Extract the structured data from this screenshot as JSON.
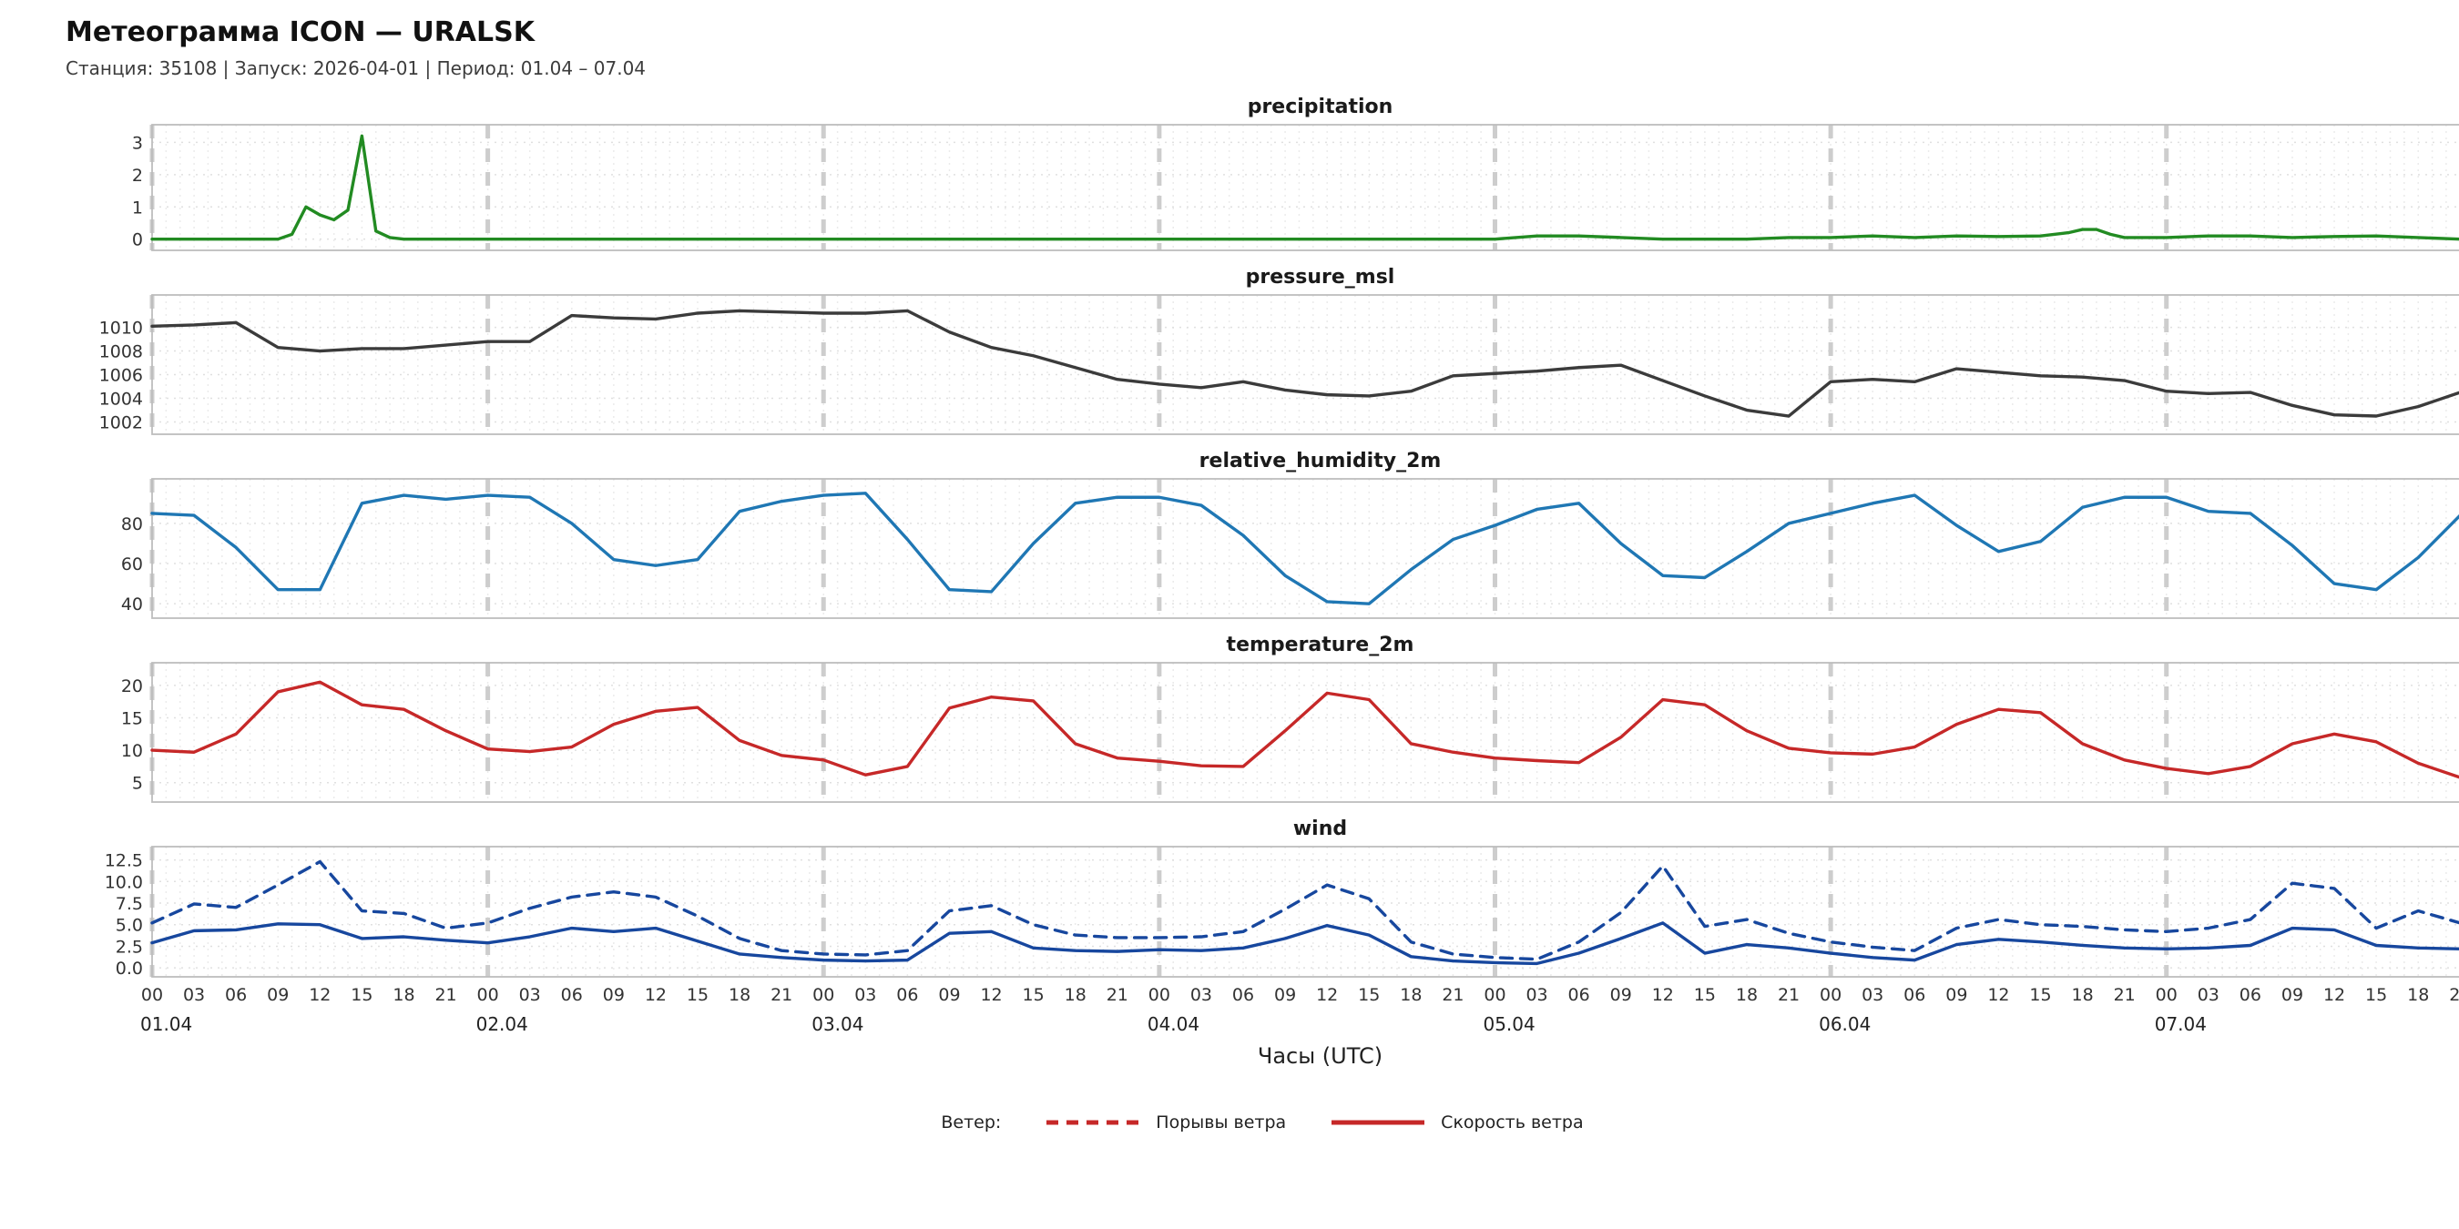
{
  "header": {
    "title": "Метеограмма ICON — URALSK",
    "subtitle": "Станция: 35108 | Запуск: 2026-04-01 | Период: 01.04 – 07.04"
  },
  "xaxis": {
    "label": "Часы (UTC)",
    "x_max": 167,
    "hours_per_day": 24,
    "hour_tick_step": 3,
    "hour_labels": [
      "00",
      "03",
      "06",
      "09",
      "12",
      "15",
      "18",
      "21"
    ],
    "day_labels": [
      "01.04",
      "02.04",
      "03.04",
      "04.04",
      "05.04",
      "06.04",
      "07.04"
    ]
  },
  "legend": {
    "prefix": "Ветер:",
    "items": [
      {
        "label": "Порывы ветра",
        "style": "dashed",
        "color": "#c62828"
      },
      {
        "label": "Скорость ветра",
        "style": "solid",
        "color": "#c62828"
      }
    ]
  },
  "grid": {
    "minor_color": "#ebebeb",
    "tick_grid_color": "#e0e0e0",
    "day_line_color": "#cdcdcd",
    "border_color": "#bdbdbd"
  },
  "chart_data": [
    {
      "type": "line",
      "title": "precipitation",
      "ylim": [
        -0.15,
        3.35
      ],
      "ytick_values": [
        0,
        1,
        2,
        3
      ],
      "ytick_labels": [
        "0",
        "1",
        "2",
        "3"
      ],
      "series": [
        {
          "name": "precipitation",
          "color": "#228B22",
          "dash": false,
          "x": [
            0,
            9,
            10,
            11,
            12,
            13,
            14,
            15,
            16,
            17,
            18,
            24,
            48,
            72,
            96,
            99,
            102,
            105,
            108,
            114,
            117,
            120,
            123,
            126,
            129,
            132,
            135,
            137,
            138,
            139,
            140,
            141,
            144,
            147,
            150,
            153,
            156,
            159,
            162,
            165,
            167
          ],
          "values": [
            0,
            0,
            0.15,
            1.0,
            0.75,
            0.6,
            0.9,
            3.2,
            0.25,
            0.05,
            0,
            0,
            0,
            0,
            0,
            0.1,
            0.1,
            0.05,
            0,
            0,
            0.05,
            0.05,
            0.1,
            0.05,
            0.1,
            0.08,
            0.1,
            0.2,
            0.3,
            0.3,
            0.15,
            0.05,
            0.05,
            0.1,
            0.1,
            0.05,
            0.08,
            0.1,
            0.05,
            0,
            0
          ]
        }
      ]
    },
    {
      "type": "line",
      "title": "pressure_msl",
      "ylim": [
        1001.5,
        1012.2
      ],
      "ytick_values": [
        1002,
        1004,
        1006,
        1008,
        1010
      ],
      "ytick_labels": [
        "1002",
        "1004",
        "1006",
        "1008",
        "1010"
      ],
      "series": [
        {
          "name": "pressure_msl",
          "color": "#3b3b3b",
          "dash": false,
          "x": [
            0,
            3,
            6,
            9,
            12,
            15,
            18,
            21,
            24,
            27,
            30,
            33,
            36,
            39,
            42,
            45,
            48,
            51,
            54,
            57,
            60,
            63,
            66,
            69,
            72,
            75,
            78,
            81,
            84,
            87,
            90,
            93,
            96,
            99,
            102,
            105,
            108,
            111,
            114,
            117,
            120,
            123,
            126,
            129,
            132,
            135,
            138,
            141,
            144,
            147,
            150,
            153,
            156,
            159,
            162,
            165,
            167
          ],
          "values": [
            1010.1,
            1010.2,
            1010.4,
            1008.3,
            1008,
            1008.2,
            1008.2,
            1008.5,
            1008.8,
            1008.8,
            1011,
            1010.8,
            1010.7,
            1011.2,
            1011.4,
            1011.3,
            1011.2,
            1011.2,
            1011.4,
            1009.6,
            1008.3,
            1007.6,
            1006.6,
            1005.6,
            1005.2,
            1004.9,
            1005.4,
            1004.7,
            1004.3,
            1004.2,
            1004.6,
            1005.9,
            1006.1,
            1006.3,
            1006.6,
            1006.8,
            1005.5,
            1004.2,
            1003,
            1002.5,
            1005.4,
            1005.6,
            1005.4,
            1006.5,
            1006.2,
            1005.9,
            1005.8,
            1005.5,
            1004.6,
            1004.4,
            1004.5,
            1003.4,
            1002.6,
            1002.5,
            1003.3,
            1004.5,
            1005.4
          ]
        }
      ]
    },
    {
      "type": "line",
      "title": "relative_humidity_2m",
      "ylim": [
        36,
        99
      ],
      "ytick_values": [
        40,
        60,
        80
      ],
      "ytick_labels": [
        "40",
        "60",
        "80"
      ],
      "series": [
        {
          "name": "relative_humidity_2m",
          "color": "#1f77b4",
          "dash": false,
          "x": [
            0,
            3,
            6,
            9,
            12,
            15,
            18,
            21,
            24,
            27,
            30,
            33,
            36,
            39,
            42,
            45,
            48,
            51,
            54,
            57,
            60,
            63,
            66,
            69,
            72,
            75,
            78,
            81,
            84,
            87,
            90,
            93,
            96,
            99,
            102,
            105,
            108,
            111,
            114,
            117,
            120,
            123,
            126,
            129,
            132,
            135,
            138,
            141,
            144,
            147,
            150,
            153,
            156,
            159,
            162,
            165,
            167
          ],
          "values": [
            85,
            84,
            68,
            47,
            47,
            90,
            94,
            92,
            94,
            93,
            80,
            62,
            59,
            62,
            86,
            91,
            94,
            95,
            72,
            47,
            46,
            70,
            90,
            93,
            93,
            89,
            74,
            54,
            41,
            40,
            57,
            72,
            79,
            87,
            90,
            70,
            54,
            53,
            66,
            80,
            85,
            90,
            94,
            79,
            66,
            71,
            88,
            93,
            93,
            86,
            85,
            69,
            50,
            47,
            63,
            84,
            87
          ]
        }
      ]
    },
    {
      "type": "line",
      "title": "temperature_2m",
      "ylim": [
        3,
        22.5
      ],
      "ytick_values": [
        5,
        10,
        15,
        20
      ],
      "ytick_labels": [
        "5",
        "10",
        "15",
        "20"
      ],
      "series": [
        {
          "name": "temperature_2m",
          "color": "#c62828",
          "dash": false,
          "x": [
            0,
            3,
            6,
            9,
            12,
            15,
            18,
            21,
            24,
            27,
            30,
            33,
            36,
            39,
            42,
            45,
            48,
            51,
            54,
            57,
            60,
            63,
            66,
            69,
            72,
            75,
            78,
            81,
            84,
            87,
            90,
            93,
            96,
            99,
            102,
            105,
            108,
            111,
            114,
            117,
            120,
            123,
            126,
            129,
            132,
            135,
            138,
            141,
            144,
            147,
            150,
            153,
            156,
            159,
            162,
            165,
            167
          ],
          "values": [
            10,
            9.7,
            12.5,
            19,
            20.5,
            17,
            16.3,
            13,
            10.2,
            9.8,
            10.5,
            14,
            16,
            16.6,
            11.5,
            9.2,
            8.5,
            6.2,
            7.5,
            16.5,
            18.2,
            17.6,
            11,
            8.8,
            8.3,
            7.6,
            7.5,
            13,
            18.8,
            17.8,
            11,
            9.7,
            8.8,
            8.4,
            8.1,
            12,
            17.8,
            17,
            13,
            10.3,
            9.6,
            9.4,
            10.5,
            14,
            16.3,
            15.8,
            11,
            8.5,
            7.2,
            6.4,
            7.5,
            11,
            12.5,
            11.3,
            8,
            5.8,
            4.2
          ]
        }
      ]
    },
    {
      "type": "line",
      "title": "wind",
      "ylim": [
        -0.3,
        13.3
      ],
      "ytick_values": [
        0,
        2.5,
        5,
        7.5,
        10,
        12.5
      ],
      "ytick_labels": [
        "0.0",
        "2.5",
        "5.0",
        "7.5",
        "10.0",
        "12.5"
      ],
      "series": [
        {
          "name": "Порывы ветра",
          "color": "#17479e",
          "dash": true,
          "x": [
            0,
            3,
            6,
            9,
            12,
            15,
            18,
            21,
            24,
            27,
            30,
            33,
            36,
            39,
            42,
            45,
            48,
            51,
            54,
            57,
            60,
            63,
            66,
            69,
            72,
            75,
            78,
            81,
            84,
            87,
            90,
            93,
            96,
            99,
            102,
            105,
            108,
            111,
            114,
            117,
            120,
            123,
            126,
            129,
            132,
            135,
            138,
            141,
            144,
            147,
            150,
            153,
            156,
            159,
            162,
            165,
            167
          ],
          "values": [
            5.2,
            7.4,
            7,
            9.6,
            12.3,
            6.6,
            6.3,
            4.6,
            5.2,
            6.9,
            8.2,
            8.8,
            8.2,
            6,
            3.4,
            2,
            1.6,
            1.5,
            2,
            6.6,
            7.2,
            5,
            3.8,
            3.5,
            3.5,
            3.6,
            4.2,
            6.8,
            9.6,
            8,
            3,
            1.6,
            1.2,
            1,
            3,
            6.4,
            11.8,
            4.8,
            5.6,
            4,
            3,
            2.4,
            2,
            4.6,
            5.6,
            5,
            4.8,
            4.4,
            4.2,
            4.6,
            5.6,
            9.8,
            9.2,
            4.6,
            6.6,
            5.2,
            4.8
          ]
        },
        {
          "name": "Скорость ветра",
          "color": "#17479e",
          "dash": false,
          "x": [
            0,
            3,
            6,
            9,
            12,
            15,
            18,
            21,
            24,
            27,
            30,
            33,
            36,
            39,
            42,
            45,
            48,
            51,
            54,
            57,
            60,
            63,
            66,
            69,
            72,
            75,
            78,
            81,
            84,
            87,
            90,
            93,
            96,
            99,
            102,
            105,
            108,
            111,
            114,
            117,
            120,
            123,
            126,
            129,
            132,
            135,
            138,
            141,
            144,
            147,
            150,
            153,
            156,
            159,
            162,
            165,
            167
          ],
          "values": [
            2.9,
            4.3,
            4.4,
            5.1,
            5,
            3.4,
            3.6,
            3.2,
            2.9,
            3.6,
            4.6,
            4.2,
            4.6,
            3.1,
            1.6,
            1.2,
            0.9,
            0.8,
            0.9,
            4,
            4.2,
            2.3,
            2,
            1.9,
            2.1,
            2,
            2.3,
            3.4,
            4.9,
            3.8,
            1.3,
            0.8,
            0.6,
            0.5,
            1.7,
            3.4,
            5.2,
            1.7,
            2.7,
            2.3,
            1.7,
            1.2,
            0.9,
            2.7,
            3.3,
            3,
            2.6,
            2.3,
            2.2,
            2.3,
            2.6,
            4.6,
            4.4,
            2.6,
            2.3,
            2.2,
            2.1
          ]
        }
      ]
    }
  ]
}
